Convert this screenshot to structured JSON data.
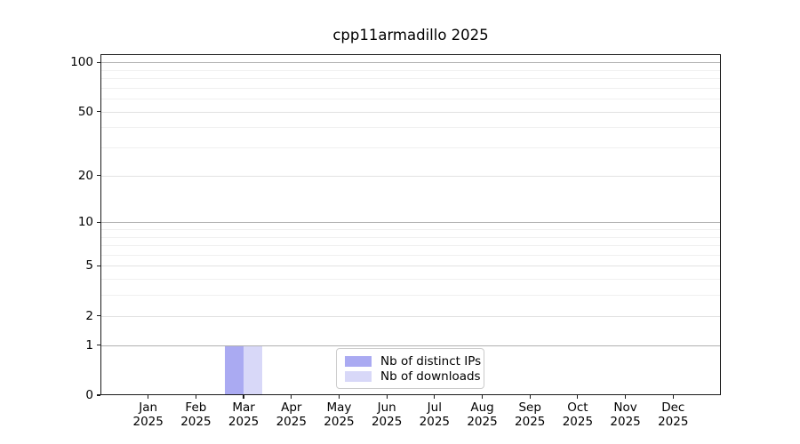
{
  "chart_data": {
    "type": "bar",
    "title": "cpp11armadillo 2025",
    "x": [
      "Jan",
      "Feb",
      "Mar",
      "Apr",
      "May",
      "Jun",
      "Jul",
      "Aug",
      "Sep",
      "Oct",
      "Nov",
      "Dec"
    ],
    "x_year_line": "2025",
    "series": [
      {
        "name": "Nb of distinct IPs",
        "color": "#aaaaf2",
        "values": [
          0,
          0,
          1,
          0,
          0,
          0,
          0,
          0,
          0,
          0,
          0,
          0
        ]
      },
      {
        "name": "Nb of downloads",
        "color": "#d8d8f8",
        "values": [
          0,
          0,
          1,
          0,
          0,
          0,
          0,
          0,
          0,
          0,
          0,
          0
        ]
      }
    ],
    "yscale": "log1p",
    "ylim": [
      0,
      112
    ],
    "y_major_ticks": [
      0,
      1,
      2,
      5,
      10,
      20,
      50,
      100
    ],
    "y_minor_ticks": [
      3,
      4,
      6,
      7,
      8,
      9,
      30,
      40,
      60,
      70,
      80,
      90
    ],
    "grid": true,
    "legend_position": "lower center",
    "colors": {
      "decade_gridline": "#b0b0b0",
      "major_gridline": "#e2e2e2",
      "minor_gridline": "#f0f0f0",
      "axis": "#1a1a1a",
      "background": "#ffffff"
    }
  }
}
